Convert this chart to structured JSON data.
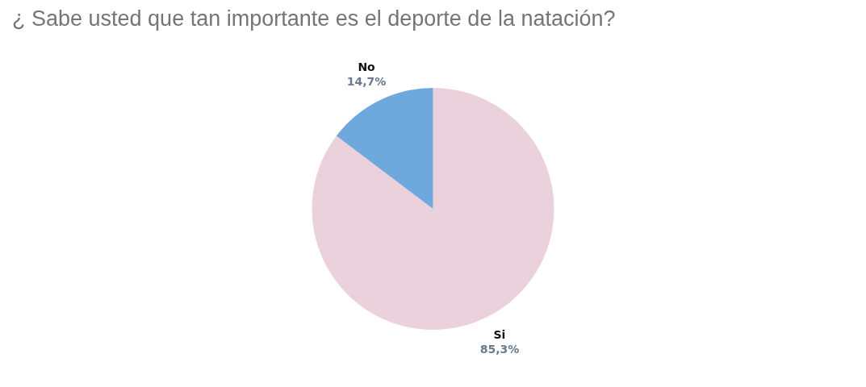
{
  "chart_data": {
    "type": "pie",
    "title": "¿ Sabe  usted que tan importante es el deporte de la natación?",
    "categories": [
      "Si",
      "No"
    ],
    "values": [
      85.3,
      14.7
    ],
    "value_labels": [
      "85,3%",
      "14,7%"
    ],
    "colors": [
      "#ead1dc",
      "#6fa8dc"
    ]
  }
}
